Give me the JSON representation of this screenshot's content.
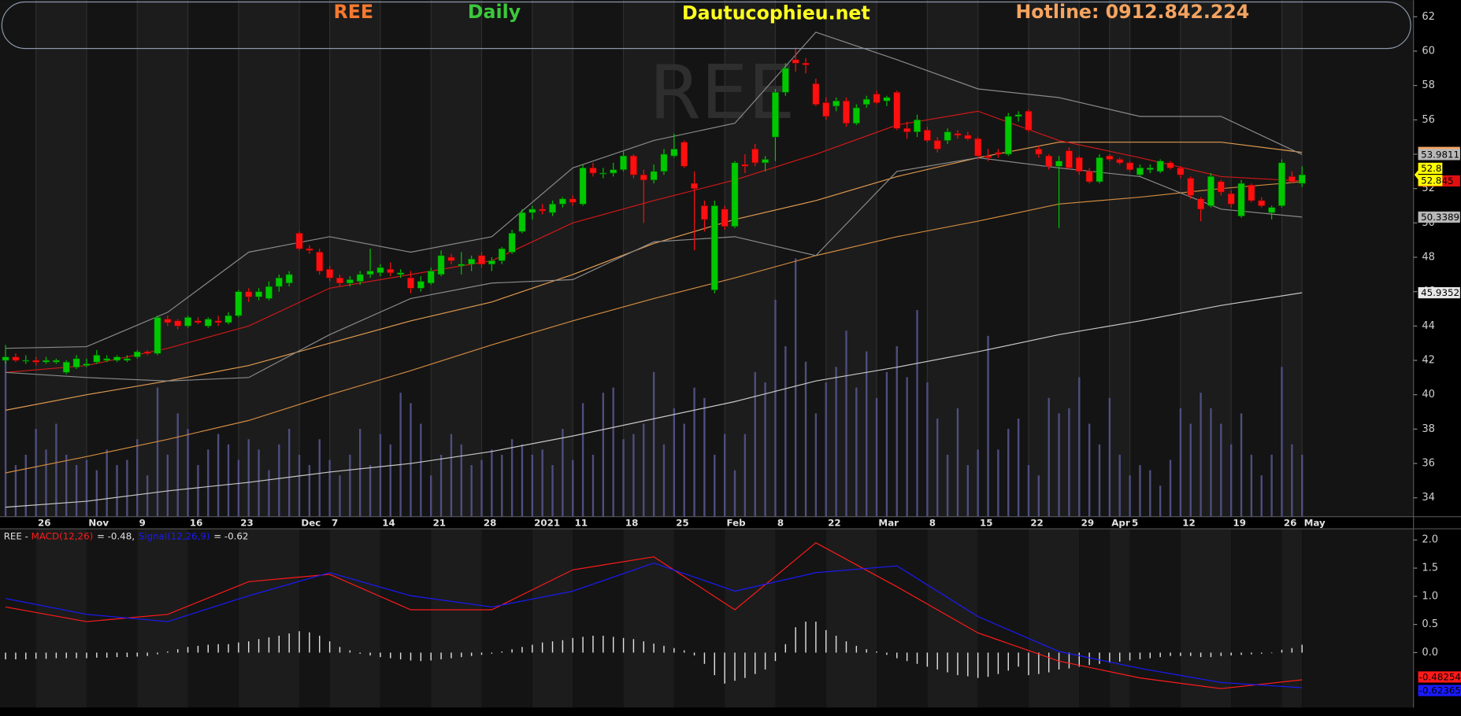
{
  "header": {
    "ticker": "REE",
    "interval": "Daily",
    "site": "Dautucophieu.net",
    "hotline": "Hotline: 0912.842.224"
  },
  "chart_data": [
    {
      "type": "candlestick",
      "watermark": "REE",
      "xlim": [
        -0.55,
        139
      ],
      "ylim": [
        32.9,
        62.97
      ],
      "yticks": [
        34,
        36,
        38,
        40,
        42,
        44,
        46,
        48,
        50,
        52,
        54,
        56,
        58,
        60,
        62
      ],
      "xticks": [
        {
          "value": 3,
          "label": "26"
        },
        {
          "value": 8,
          "label": "Nov"
        },
        {
          "value": 13,
          "label": "9"
        },
        {
          "value": 18,
          "label": "16"
        },
        {
          "value": 23,
          "label": "23"
        },
        {
          "value": 29,
          "label": "Dec"
        },
        {
          "value": 32,
          "label": "7"
        },
        {
          "value": 37,
          "label": "14"
        },
        {
          "value": 42,
          "label": "21"
        },
        {
          "value": 47,
          "label": "28"
        },
        {
          "value": 52,
          "label": "2021"
        },
        {
          "value": 56,
          "label": "11"
        },
        {
          "value": 61,
          "label": "18"
        },
        {
          "value": 66,
          "label": "25"
        },
        {
          "value": 71,
          "label": "Feb"
        },
        {
          "value": 76,
          "label": "8"
        },
        {
          "value": 81,
          "label": "22"
        },
        {
          "value": 86,
          "label": "Mar"
        },
        {
          "value": 91,
          "label": "8"
        },
        {
          "value": 96,
          "label": "15"
        },
        {
          "value": 101,
          "label": "22"
        },
        {
          "value": 106,
          "label": "29"
        },
        {
          "value": 109,
          "label": "Apr"
        },
        {
          "value": 111,
          "label": "5"
        },
        {
          "value": 116,
          "label": "12"
        },
        {
          "value": 121,
          "label": "19"
        },
        {
          "value": 126,
          "label": "26"
        },
        {
          "value": 128,
          "label": "May"
        }
      ],
      "up_color": "#00c800",
      "down_color": "#ff1010",
      "volume_color": "#4e4e80",
      "volume_lim": [
        0,
        100
      ],
      "open": [
        42.0,
        42.2,
        42.0,
        42.0,
        41.9,
        41.9,
        41.3,
        41.6,
        41.7,
        41.9,
        42.0,
        42.0,
        42.0,
        42.2,
        42.5,
        42.4,
        44.4,
        44.3,
        44.0,
        44.3,
        44.0,
        44.3,
        44.2,
        44.6,
        46.0,
        45.7,
        45.6,
        46.3,
        46.5,
        49.4,
        48.5,
        48.3,
        47.3,
        46.8,
        46.5,
        46.6,
        47.0,
        47.1,
        47.3,
        47.0,
        46.8,
        46.2,
        46.5,
        47.0,
        48.0,
        47.5,
        47.6,
        48.1,
        47.6,
        47.8,
        48.3,
        49.5,
        50.6,
        50.8,
        50.6,
        51.1,
        51.4,
        51.1,
        53.2,
        52.9,
        52.9,
        53.1,
        53.9,
        52.8,
        52.5,
        53.0,
        53.9,
        54.7,
        52.3,
        51.0,
        46.1,
        50.8,
        49.8,
        53.4,
        54.3,
        53.5,
        55.0,
        57.6,
        59.5,
        59.3,
        58.1,
        57.0,
        56.8,
        57.1,
        55.8,
        56.9,
        57.5,
        57.1,
        57.6,
        55.5,
        55.3,
        55.4,
        54.8,
        54.8,
        55.2,
        55.1,
        54.9,
        53.9,
        54.1,
        54.0,
        56.2,
        56.5,
        54.3,
        53.9,
        53.3,
        54.2,
        53.8,
        53.0,
        52.4,
        53.9,
        53.7,
        53.5,
        52.8,
        53.1,
        53.0,
        53.5,
        53.2,
        52.6,
        51.4,
        51.0,
        52.4,
        51.7,
        50.4,
        52.2,
        51.3,
        50.6,
        51.0,
        52.7,
        52.3
      ],
      "high": [
        42.9,
        42.4,
        42.3,
        42.2,
        42.2,
        42.1,
        42.0,
        42.3,
        42.1,
        42.6,
        42.3,
        42.3,
        42.3,
        42.6,
        42.6,
        44.6,
        44.6,
        44.4,
        44.6,
        44.5,
        44.5,
        44.6,
        44.8,
        46.1,
        46.2,
        46.2,
        46.6,
        47.0,
        47.2,
        49.5,
        48.7,
        48.5,
        47.5,
        47.0,
        46.9,
        47.2,
        48.5,
        47.6,
        47.7,
        47.3,
        47.2,
        46.9,
        47.4,
        48.4,
        48.2,
        48.3,
        48.1,
        48.3,
        48.0,
        48.6,
        49.6,
        50.8,
        51.0,
        51.1,
        51.3,
        51.5,
        51.6,
        53.4,
        53.5,
        53.2,
        53.5,
        54.2,
        54.0,
        53.1,
        53.4,
        54.3,
        55.2,
        54.8,
        53.0,
        51.3,
        51.3,
        51.0,
        53.6,
        54.0,
        54.6,
        53.9,
        57.8,
        59.3,
        60.2,
        59.6,
        58.4,
        57.3,
        57.3,
        57.3,
        56.9,
        57.4,
        57.7,
        57.4,
        57.7,
        55.9,
        56.3,
        55.6,
        55.0,
        55.5,
        55.4,
        55.3,
        55.0,
        54.3,
        54.3,
        56.4,
        56.5,
        56.6,
        54.5,
        54.0,
        53.9,
        54.4,
        53.9,
        53.2,
        54.0,
        54.0,
        53.8,
        53.6,
        53.4,
        53.4,
        53.7,
        53.6,
        53.3,
        52.7,
        51.5,
        52.9,
        52.5,
        51.9,
        52.5,
        52.3,
        51.5,
        51.0,
        53.7,
        53.0,
        53.3
      ],
      "low": [
        41.8,
        41.9,
        41.8,
        41.7,
        41.8,
        41.8,
        41.2,
        41.5,
        41.6,
        41.8,
        41.9,
        41.9,
        41.9,
        42.1,
        42.3,
        42.3,
        44.0,
        43.8,
        43.9,
        44.1,
        43.9,
        44.0,
        44.1,
        44.5,
        45.4,
        45.5,
        45.5,
        46.0,
        46.3,
        48.4,
        48.2,
        47.0,
        46.6,
        46.3,
        46.3,
        46.4,
        46.8,
        46.9,
        46.9,
        46.8,
        45.9,
        46.0,
        46.4,
        46.9,
        47.6,
        47.0,
        47.2,
        47.4,
        47.2,
        47.6,
        48.2,
        49.4,
        50.2,
        50.5,
        50.4,
        50.9,
        51.0,
        51.0,
        52.7,
        52.6,
        52.7,
        53.0,
        52.6,
        50.0,
        52.3,
        52.8,
        53.8,
        53.2,
        48.4,
        49.5,
        45.9,
        49.6,
        49.7,
        52.9,
        53.3,
        53.0,
        53.6,
        57.4,
        58.8,
        58.7,
        56.8,
        56.0,
        56.5,
        55.6,
        55.7,
        56.7,
        56.9,
        56.8,
        55.4,
        54.9,
        55.0,
        54.7,
        54.1,
        54.6,
        54.9,
        54.8,
        53.7,
        53.6,
        53.8,
        53.9,
        55.9,
        55.3,
        53.8,
        53.1,
        49.7,
        53.1,
        52.8,
        52.3,
        52.3,
        53.6,
        53.4,
        53.0,
        52.7,
        52.9,
        52.9,
        53.1,
        52.6,
        51.4,
        50.1,
        50.9,
        51.6,
        50.9,
        50.3,
        51.2,
        50.9,
        50.2,
        50.9,
        52.3,
        52.1
      ],
      "close": [
        42.2,
        42.0,
        42.0,
        41.9,
        42.0,
        42.0,
        41.9,
        42.1,
        41.8,
        42.3,
        42.1,
        42.2,
        42.1,
        42.5,
        42.4,
        44.5,
        44.2,
        44.0,
        44.5,
        44.2,
        44.4,
        44.2,
        44.6,
        46.0,
        45.7,
        46.0,
        46.3,
        46.8,
        47.0,
        48.5,
        48.4,
        47.2,
        46.8,
        46.5,
        46.7,
        47.0,
        47.2,
        47.4,
        47.1,
        47.1,
        46.2,
        46.6,
        47.2,
        48.1,
        47.8,
        47.6,
        47.9,
        47.6,
        47.8,
        48.5,
        49.4,
        50.6,
        50.8,
        50.7,
        51.1,
        51.4,
        51.2,
        53.2,
        52.9,
        52.9,
        53.1,
        53.9,
        52.8,
        52.5,
        53.0,
        54.0,
        54.3,
        53.3,
        52.0,
        50.2,
        51.0,
        49.8,
        53.5,
        53.3,
        53.5,
        53.7,
        57.6,
        59.0,
        59.3,
        59.2,
        56.9,
        56.2,
        57.1,
        55.8,
        56.7,
        57.2,
        57.0,
        57.3,
        55.5,
        55.3,
        56.0,
        54.8,
        54.3,
        55.3,
        55.1,
        54.9,
        53.9,
        53.8,
        54.0,
        56.2,
        56.3,
        55.4,
        54.0,
        53.3,
        53.6,
        53.2,
        53.0,
        52.4,
        53.8,
        53.7,
        53.5,
        53.1,
        53.2,
        53.2,
        53.6,
        53.2,
        52.8,
        51.6,
        50.8,
        52.7,
        51.8,
        51.1,
        52.3,
        51.3,
        51.0,
        50.9,
        53.5,
        52.4,
        52.8
      ],
      "volume": [
        31,
        10,
        12,
        17,
        13,
        18,
        12,
        10,
        11,
        9,
        13,
        10,
        11,
        15,
        8,
        25,
        12,
        20,
        17,
        10,
        13,
        16,
        14,
        11,
        15,
        13,
        9,
        14,
        17,
        12,
        10,
        15,
        11,
        8,
        12,
        17,
        10,
        16,
        14,
        24,
        22,
        18,
        8,
        12,
        16,
        14,
        10,
        11,
        13,
        12,
        15,
        14,
        12,
        13,
        10,
        17,
        11,
        22,
        12,
        24,
        25,
        15,
        16,
        18,
        28,
        14,
        21,
        18,
        25,
        23,
        12,
        16,
        9,
        16,
        28,
        26,
        42,
        33,
        50,
        30,
        20,
        26,
        29,
        36,
        25,
        32,
        23,
        28,
        33,
        27,
        40,
        26,
        19,
        12,
        21,
        10,
        13,
        35,
        13,
        17,
        19,
        10,
        8,
        23,
        20,
        21,
        27,
        18,
        14,
        23,
        12,
        8,
        10,
        9,
        6,
        11,
        21,
        18,
        24,
        21,
        18,
        14,
        20,
        12,
        8,
        12,
        29,
        14,
        12
      ],
      "line_x": [
        0,
        8,
        16,
        24,
        32,
        40,
        48,
        56,
        64,
        72,
        80,
        88,
        96,
        104,
        112,
        120,
        128
      ],
      "series": [
        {
          "color": "#c8c8c8",
          "values": [
            33.45,
            33.8,
            34.4,
            34.9,
            35.5,
            36.0,
            36.7,
            37.6,
            38.6,
            39.6,
            40.8,
            41.6,
            42.5,
            43.5,
            44.3,
            45.2,
            45.9352
          ],
          "badge_bg": "#e8e8e8"
        },
        {
          "color": "#d08a40",
          "values": [
            35.45,
            36.4,
            37.4,
            38.5,
            40.0,
            41.4,
            42.9,
            44.3,
            45.6,
            46.8,
            48.1,
            49.2,
            50.1,
            51.1,
            51.5,
            52.0,
            52.4
          ]
        },
        {
          "color": "#e09a50",
          "values": [
            39.1,
            40.0,
            40.8,
            41.7,
            43.0,
            44.3,
            45.4,
            47.0,
            48.8,
            50.2,
            51.3,
            52.7,
            53.8,
            54.7,
            54.7,
            54.7,
            54.104
          ],
          "badge_bg": "#f4a460"
        },
        {
          "color": "#d01818",
          "values": [
            41.3,
            41.7,
            42.7,
            44.0,
            46.2,
            47.0,
            47.8,
            50.0,
            51.3,
            52.5,
            54.0,
            55.7,
            56.5,
            54.8,
            53.8,
            52.7,
            52.445
          ],
          "badge_bg": "#e01010"
        },
        {
          "color": "#8a8a8a",
          "values": [
            42.7,
            42.8,
            44.8,
            48.3,
            49.2,
            48.3,
            49.2,
            53.2,
            54.8,
            55.8,
            61.1,
            59.5,
            57.8,
            57.3,
            56.2,
            56.2,
            53.9811
          ],
          "badge_bg": "#b8b8b8"
        },
        {
          "color": "#8a8a8a",
          "values": [
            41.3,
            41.0,
            40.8,
            41.0,
            43.5,
            45.6,
            46.5,
            46.7,
            48.9,
            49.2,
            48.1,
            53.0,
            53.8,
            53.2,
            52.7,
            50.8,
            50.3389
          ],
          "badge_bg": "#b8b8b8"
        }
      ]
    },
    {
      "type": "macd",
      "prefix": "REE - ",
      "xlim": [
        -0.55,
        139
      ],
      "ylim": [
        -0.975,
        2.198
      ],
      "yticks": [
        {
          "value": 0,
          "label": "0.0"
        },
        {
          "value": 0.5,
          "label": "0.5"
        },
        {
          "value": 1,
          "label": "1.0"
        },
        {
          "value": 1.5,
          "label": "1.5"
        },
        {
          "value": 2,
          "label": "2.0"
        }
      ],
      "x": [
        0,
        8,
        16,
        24,
        32,
        40,
        48,
        56,
        64,
        72,
        80,
        88,
        96,
        104,
        112,
        120,
        128
      ],
      "series": [
        {
          "name": "MACD(12,26)",
          "legend_value": "= -0.48,",
          "color": "#ff1a1a",
          "values": [
            0.81,
            0.55,
            0.68,
            1.26,
            1.39,
            0.76,
            0.76,
            1.47,
            1.7,
            0.76,
            1.95,
            1.17,
            0.35,
            -0.15,
            -0.45,
            -0.64,
            -0.48254
          ]
        },
        {
          "name": "Signal(12,26,9)",
          "legend_value": "= -0.62",
          "color": "#1a1aff",
          "values": [
            0.96,
            0.68,
            0.55,
            1.01,
            1.42,
            1.01,
            0.81,
            1.09,
            1.59,
            1.09,
            1.42,
            1.54,
            0.64,
            0.02,
            -0.28,
            -0.53,
            -0.623657
          ]
        }
      ],
      "histogram_color": "#e0e0e0",
      "histogram": [
        -0.12,
        -0.12,
        -0.12,
        -0.11,
        -0.11,
        -0.1,
        -0.1,
        -0.1,
        -0.1,
        -0.09,
        -0.09,
        -0.08,
        -0.08,
        -0.07,
        -0.06,
        -0.03,
        0.02,
        0.06,
        0.1,
        0.12,
        0.14,
        0.15,
        0.15,
        0.18,
        0.2,
        0.24,
        0.27,
        0.3,
        0.34,
        0.38,
        0.36,
        0.3,
        0.2,
        0.1,
        0.04,
        -0.02,
        -0.05,
        -0.08,
        -0.1,
        -0.12,
        -0.14,
        -0.15,
        -0.14,
        -0.12,
        -0.1,
        -0.08,
        -0.06,
        -0.04,
        -0.02,
        0.02,
        0.06,
        0.1,
        0.14,
        0.18,
        0.2,
        0.22,
        0.26,
        0.28,
        0.3,
        0.3,
        0.28,
        0.26,
        0.24,
        0.2,
        0.16,
        0.12,
        0.08,
        0.04,
        -0.05,
        -0.2,
        -0.4,
        -0.55,
        -0.5,
        -0.45,
        -0.38,
        -0.3,
        -0.15,
        0.15,
        0.45,
        0.55,
        0.55,
        0.4,
        0.3,
        0.2,
        0.12,
        0.06,
        0.02,
        -0.04,
        -0.1,
        -0.15,
        -0.2,
        -0.25,
        -0.3,
        -0.35,
        -0.4,
        -0.42,
        -0.45,
        -0.43,
        -0.38,
        -0.32,
        -0.25,
        -0.4,
        -0.38,
        -0.35,
        -0.3,
        -0.28,
        -0.25,
        -0.22,
        -0.2,
        -0.18,
        -0.16,
        -0.14,
        -0.12,
        -0.1,
        -0.08,
        -0.06,
        -0.06,
        -0.06,
        -0.08,
        -0.08,
        -0.06,
        -0.05,
        -0.04,
        -0.03,
        -0.02,
        -0.01,
        0.05,
        0.08,
        0.14
      ]
    }
  ]
}
